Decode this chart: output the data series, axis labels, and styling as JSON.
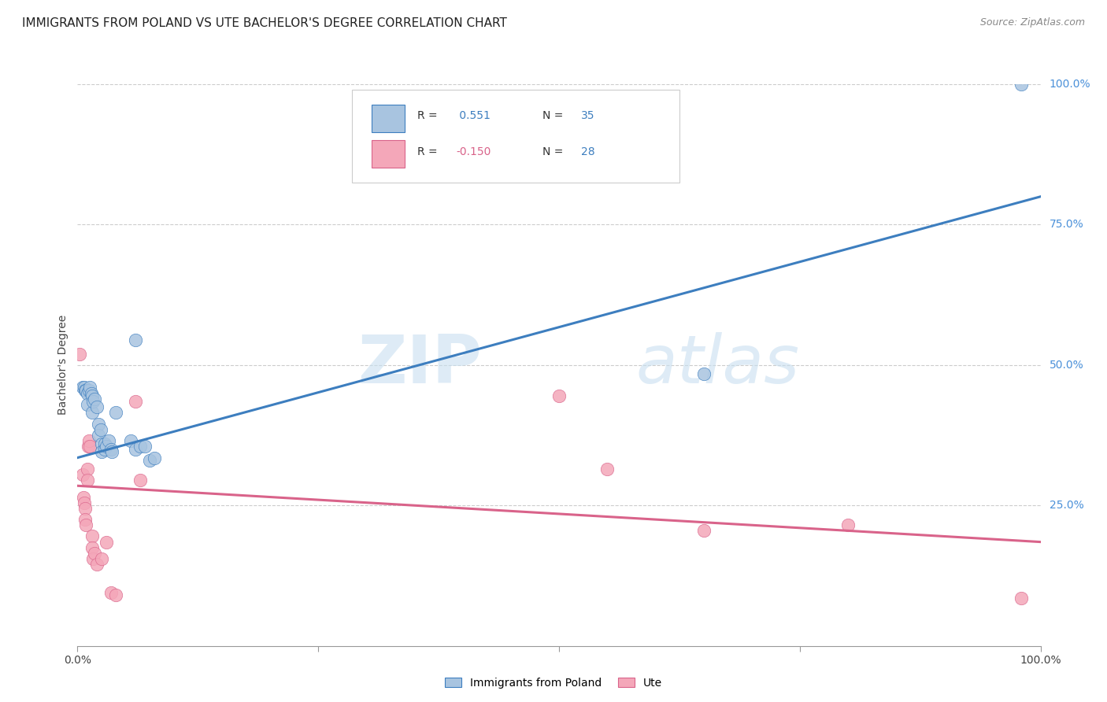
{
  "title": "IMMIGRANTS FROM POLAND VS UTE BACHELOR'S DEGREE CORRELATION CHART",
  "source": "Source: ZipAtlas.com",
  "ylabel": "Bachelor's Degree",
  "xlim": [
    0,
    1
  ],
  "ylim": [
    0,
    1
  ],
  "watermark_zip": "ZIP",
  "watermark_atlas": "atlas",
  "blue_scatter": [
    [
      0.005,
      0.46
    ],
    [
      0.007,
      0.46
    ],
    [
      0.008,
      0.455
    ],
    [
      0.009,
      0.455
    ],
    [
      0.01,
      0.45
    ],
    [
      0.01,
      0.43
    ],
    [
      0.012,
      0.455
    ],
    [
      0.013,
      0.46
    ],
    [
      0.014,
      0.45
    ],
    [
      0.015,
      0.445
    ],
    [
      0.015,
      0.415
    ],
    [
      0.016,
      0.435
    ],
    [
      0.018,
      0.44
    ],
    [
      0.02,
      0.425
    ],
    [
      0.022,
      0.395
    ],
    [
      0.022,
      0.375
    ],
    [
      0.024,
      0.385
    ],
    [
      0.025,
      0.36
    ],
    [
      0.025,
      0.345
    ],
    [
      0.028,
      0.36
    ],
    [
      0.028,
      0.35
    ],
    [
      0.03,
      0.355
    ],
    [
      0.032,
      0.365
    ],
    [
      0.035,
      0.35
    ],
    [
      0.036,
      0.345
    ],
    [
      0.04,
      0.415
    ],
    [
      0.055,
      0.365
    ],
    [
      0.06,
      0.35
    ],
    [
      0.06,
      0.545
    ],
    [
      0.065,
      0.355
    ],
    [
      0.07,
      0.355
    ],
    [
      0.075,
      0.33
    ],
    [
      0.08,
      0.335
    ],
    [
      0.65,
      0.485
    ],
    [
      0.98,
      1.0
    ]
  ],
  "pink_scatter": [
    [
      0.002,
      0.52
    ],
    [
      0.005,
      0.305
    ],
    [
      0.006,
      0.265
    ],
    [
      0.007,
      0.255
    ],
    [
      0.008,
      0.245
    ],
    [
      0.008,
      0.225
    ],
    [
      0.009,
      0.215
    ],
    [
      0.01,
      0.315
    ],
    [
      0.01,
      0.295
    ],
    [
      0.011,
      0.355
    ],
    [
      0.012,
      0.365
    ],
    [
      0.013,
      0.355
    ],
    [
      0.015,
      0.195
    ],
    [
      0.015,
      0.175
    ],
    [
      0.016,
      0.155
    ],
    [
      0.018,
      0.165
    ],
    [
      0.02,
      0.145
    ],
    [
      0.025,
      0.155
    ],
    [
      0.03,
      0.185
    ],
    [
      0.035,
      0.095
    ],
    [
      0.04,
      0.09
    ],
    [
      0.06,
      0.435
    ],
    [
      0.065,
      0.295
    ],
    [
      0.5,
      0.445
    ],
    [
      0.55,
      0.315
    ],
    [
      0.65,
      0.205
    ],
    [
      0.8,
      0.215
    ],
    [
      0.98,
      0.085
    ]
  ],
  "blue_line_x": [
    0,
    1.0
  ],
  "blue_line_y": [
    0.335,
    0.8
  ],
  "pink_line_x": [
    0,
    1.0
  ],
  "pink_line_y": [
    0.285,
    0.185
  ],
  "blue_color": "#3d7ebf",
  "pink_color": "#d9638a",
  "blue_scatter_color": "#a8c4e0",
  "pink_scatter_color": "#f4a7b9",
  "right_tick_color": "#4a90d9",
  "background_color": "#ffffff",
  "grid_color": "#cccccc",
  "title_fontsize": 11,
  "axis_label_fontsize": 10,
  "tick_fontsize": 10,
  "source_fontsize": 9
}
